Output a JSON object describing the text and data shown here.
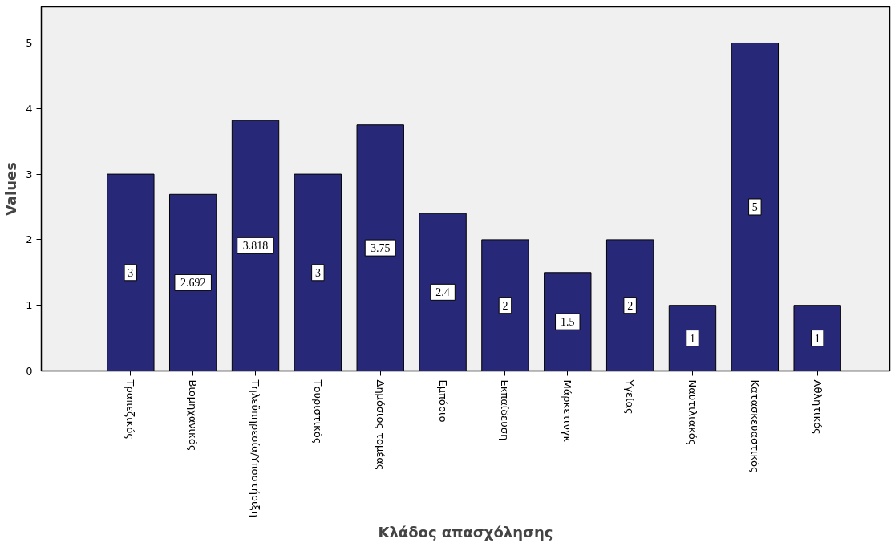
{
  "chart_data": {
    "type": "bar",
    "xlabel": "Κλάδος απασχόλησης",
    "ylabel": "Values",
    "categories": [
      "Τραπεζικός",
      "Βιομηχανικός",
      "Τηλεϋπηρεσία/Υποστήριξη",
      "Τουριστικός",
      "Δημόσιος τομέας",
      "Εμπόριο",
      "Εκπαίδευση",
      "Μάρκετινγκ",
      "Υγείας",
      "Ναυτιλιακός",
      "Κατασκευαστικός",
      "Αθλητικός"
    ],
    "values": [
      3,
      2.692,
      3.818,
      3,
      3.75,
      2.4,
      2,
      1.5,
      2,
      1,
      5,
      1
    ],
    "color": "#282878",
    "ylim": [
      0,
      5.55
    ],
    "yticks": [
      0,
      1,
      2,
      3,
      4,
      5
    ],
    "data_labels": true
  }
}
